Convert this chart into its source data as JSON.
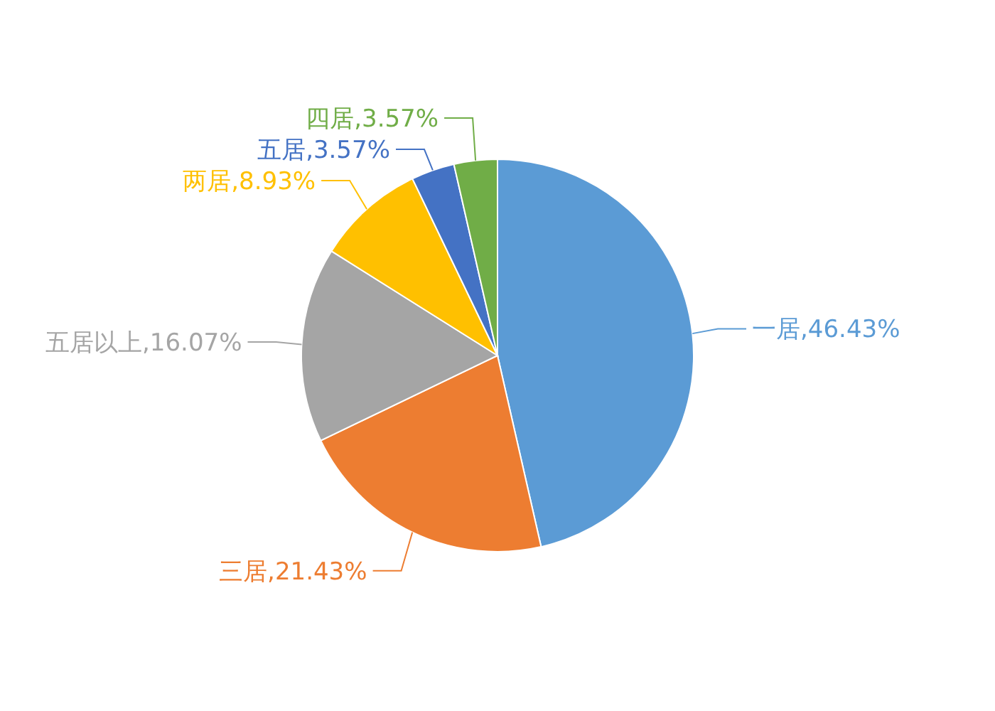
{
  "chart_data": {
    "type": "pie",
    "categories": [
      "一居",
      "三居",
      "五居以上",
      "两居",
      "五居",
      "四居"
    ],
    "values": [
      46.43,
      21.43,
      16.07,
      8.93,
      3.57,
      3.57
    ],
    "colors": [
      "#5b9bd5",
      "#ed7d31",
      "#a5a5a5",
      "#ffc000",
      "#4472c4",
      "#70ad47"
    ],
    "value_labels": [
      ",46.43%",
      ",21.43%",
      ",16.07%",
      ",8.93%",
      ",3.57%",
      ",3.57%"
    ]
  }
}
